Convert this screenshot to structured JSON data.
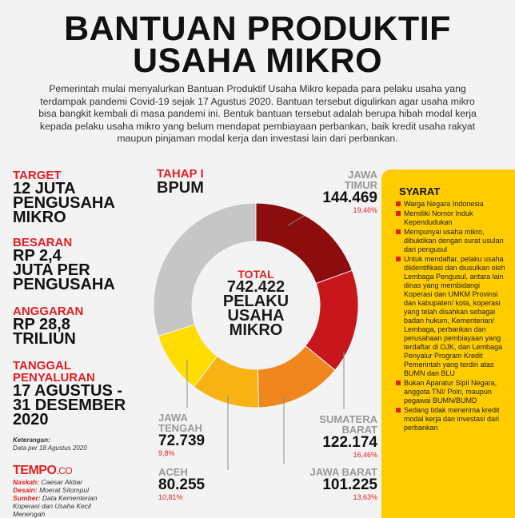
{
  "title_line1": "BANTUAN PRODUKTIF",
  "title_line2": "USAHA MIKRO",
  "intro": "Pemerintah mulai menyalurkan Bantuan Produktif Usaha Mikro kepada para pelaku usaha yang terdampak pandemi Covid-19 sejak 17 Agustus 2020. Bantuan tersebut digulirkan agar usaha mikro bisa bangkit kembali di masa pandemi ini. Bentuk bantuan tersebut adalah berupa hibah modal kerja kepada pelaku usaha mikro yang belum mendapat pembiayaan perbankan, baik kredit usaha rakyat maupun pinjaman modal kerja dan investasi lain dari perbankan.",
  "stats": [
    {
      "label": "TARGET",
      "value": "12 JUTA\nPENGUSAHA\nMIKRO"
    },
    {
      "label": "BESARAN",
      "value": "RP 2,4\nJUTA PER\nPENGUSAHA"
    },
    {
      "label": "ANGGARAN",
      "value": "RP 28,8\nTRILIUN"
    },
    {
      "label": "TANGGAL\nPENYALURAN",
      "value": "17 AGUSTUS -\n31 DESEMBER\n2020"
    }
  ],
  "note_label": "Keterangan:",
  "note_text": "Data per 18 Agustus 2020",
  "brand": "TEMPO",
  "brand_suffix": ".CO",
  "credits": [
    {
      "k": "Naskah:",
      "v": "Caesar Akbar"
    },
    {
      "k": "Desain:",
      "v": "Moerat Sitompul"
    },
    {
      "k": "Sumber:",
      "v": "Data Kementerian Koperasi dan Usaha Kecil Menengah"
    }
  ],
  "tahap_label": "TAHAP I",
  "tahap_value": "BPUM",
  "total_label": "TOTAL",
  "total_value": "742.422\nPELAKU\nUSAHA\nMIKRO",
  "chart_data": {
    "type": "pie",
    "title": "",
    "total": 742422,
    "series": [
      {
        "name": "JAWA TIMUR",
        "value": 144469,
        "percent": "19,46%",
        "color": "#8b0d0d"
      },
      {
        "name": "SUMATERA BARAT",
        "value": 122174,
        "percent": "16,46%",
        "color": "#c8161d"
      },
      {
        "name": "JAWA BARAT",
        "value": 101225,
        "percent": "13,63%",
        "color": "#f0861e"
      },
      {
        "name": "ACEH",
        "value": 80255,
        "percent": "10,81%",
        "color": "#f9b214"
      },
      {
        "name": "JAWA TENGAH",
        "value": 72739,
        "percent": "9,8%",
        "color": "#ffdd00"
      },
      {
        "name": "",
        "value": 221560,
        "percent": "",
        "color": "#c6c6c6"
      }
    ]
  },
  "labels": {
    "jatim": {
      "name": "JAWA\nTIMUR",
      "value": "144.469",
      "pct": "19,46%"
    },
    "sumbar": {
      "name": "SUMATERA\nBARAT",
      "value": "122.174",
      "pct": "16,46%"
    },
    "jabar": {
      "name": "JAWA BARAT",
      "value": "101.225",
      "pct": "13,63%"
    },
    "aceh": {
      "name": "ACEH",
      "value": "80.255",
      "pct": "10,81%"
    },
    "jateng": {
      "name": "JAWA\nTENGAH",
      "value": "72.739",
      "pct": "9,8%"
    }
  },
  "syarat_title": "SYARAT",
  "syarat": [
    "Warga Negara Indonesia",
    "Memiliki Nomor Induk Kependudukan",
    "Mempunyai usaha mikro, dibuktikan dengan surat usulan dari pengusul",
    "Untuk mendaftar, pelaku usaha diidentifikasi dan diusulkan oleh Lembaga Pengusul, antara lain dinas yang membidangi Koperasi dan UMKM Provinsi dan kabupaten/ kota, koperasi yang telah disahkan sebagai badan hukum, Kementerian/ Lembaga, perbankan dan perusahaan pembiayaan yang terdaftar di OJK, dan Lembaga Penyalur Program Kredit Pemerintah yang terdiri atas BUMN dan BLU",
    "Bukan Aparatur Sipil Negara, anggota TNI/ Polri, maupun pegawai BUMN/BUMD",
    "Sedang tidak menerima kredit modal kerja dan investasi dari perbankan"
  ]
}
